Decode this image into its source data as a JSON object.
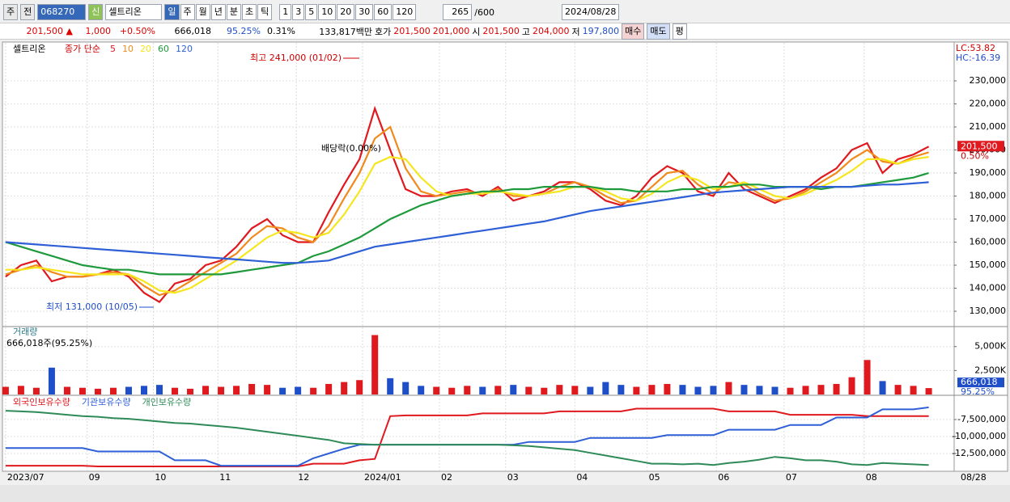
{
  "toolbar": {
    "unit": "주",
    "prev": "전",
    "code": "068270",
    "new_badge": "신",
    "name": "셀트리온",
    "periods": [
      "일",
      "주",
      "월",
      "년",
      "분",
      "초",
      "틱"
    ],
    "intervals": [
      "1",
      "3",
      "5",
      "10",
      "20",
      "30",
      "60",
      "120"
    ],
    "count": "265",
    "max_count": "/600",
    "date": "2024/08/28"
  },
  "quote": {
    "price": "201,500 ▲",
    "change": "1,000",
    "change_pct": "+0.50%",
    "volume": "666,018",
    "volume_ratio": "95.25%",
    "turnover": "0.31%",
    "amount": "133,817백만",
    "bid_label": "호가",
    "ask": "201,500",
    "bid": "201,000",
    "open_label": "시",
    "open": "201,500",
    "high_label": "고",
    "high": "204,000",
    "low_label": "저",
    "low": "197,800",
    "buy": "매수",
    "sell": "매도",
    "avg": "평"
  },
  "chart_data": [
    {
      "type": "line",
      "title": "셀트리온",
      "legend_prefix": "종가 단순",
      "grid": true,
      "x": [
        0,
        1,
        2,
        3,
        4,
        5,
        6,
        7,
        8,
        9,
        10,
        11,
        12,
        13,
        14,
        15,
        16,
        17,
        18,
        19,
        20,
        21,
        22,
        23,
        24,
        25,
        26,
        27,
        28,
        29,
        30,
        31,
        32,
        33,
        34,
        35,
        36,
        37,
        38,
        39,
        40,
        41,
        42,
        43,
        44,
        45,
        46,
        47,
        48,
        49,
        50,
        51,
        52,
        53,
        54,
        55,
        56,
        57,
        58,
        59,
        60
      ],
      "xlim": [
        -0.1,
        61.6
      ],
      "ylim": [
        123700,
        245800
      ],
      "yticks": [
        {
          "value": 130000,
          "label": "130,000"
        },
        {
          "value": 140000,
          "label": "140,000"
        },
        {
          "value": 150000,
          "label": "150,000"
        },
        {
          "value": 160000,
          "label": "160,000"
        },
        {
          "value": 170000,
          "label": "170,000"
        },
        {
          "value": 180000,
          "label": "180,000"
        },
        {
          "value": 190000,
          "label": "190,000"
        },
        {
          "value": 200000,
          "label": "200,000"
        },
        {
          "value": 210000,
          "label": "210,000"
        },
        {
          "value": 220000,
          "label": "220,000"
        },
        {
          "value": 230000,
          "label": "230,000"
        }
      ],
      "series": [
        {
          "name": "5",
          "color": "#e0191f",
          "values": [
            145000,
            150000,
            152000,
            143000,
            145000,
            145000,
            146000,
            148000,
            145000,
            138000,
            134000,
            142000,
            144000,
            150000,
            152000,
            158000,
            166000,
            170000,
            163000,
            160000,
            160000,
            173000,
            185000,
            196000,
            218000,
            200000,
            183000,
            180000,
            180000,
            182000,
            183000,
            180000,
            184000,
            178000,
            180000,
            182000,
            186000,
            186000,
            183000,
            178000,
            176000,
            180000,
            188000,
            193000,
            190000,
            182000,
            180000,
            190000,
            183000,
            180000,
            177000,
            180000,
            183000,
            188000,
            192000,
            200000,
            203000,
            190000,
            196000,
            198000,
            201500
          ]
        },
        {
          "name": "10",
          "color": "#f08a1c",
          "values": [
            146000,
            148000,
            150000,
            147000,
            145000,
            145000,
            146000,
            147000,
            146000,
            141000,
            137000,
            139000,
            143000,
            147000,
            151000,
            155000,
            162000,
            167000,
            166000,
            162000,
            160000,
            167000,
            179000,
            190000,
            205000,
            210000,
            192000,
            182000,
            180000,
            181000,
            182000,
            181000,
            183000,
            180000,
            180000,
            181000,
            184000,
            186000,
            184000,
            180000,
            177000,
            178000,
            184000,
            190000,
            191000,
            185000,
            181000,
            186000,
            185000,
            181000,
            178000,
            179000,
            182000,
            186000,
            190000,
            196000,
            200000,
            195000,
            194000,
            197000,
            199000
          ]
        },
        {
          "name": "20",
          "color": "#f5e61e",
          "values": [
            148000,
            148000,
            149000,
            148000,
            147000,
            146000,
            146000,
            146000,
            146000,
            143000,
            139000,
            138000,
            140000,
            144000,
            148000,
            152000,
            157000,
            162000,
            165000,
            164000,
            162000,
            164000,
            172000,
            182000,
            194000,
            197000,
            196000,
            188000,
            182000,
            180000,
            181000,
            181000,
            182000,
            181000,
            180000,
            181000,
            182000,
            184000,
            184000,
            182000,
            179000,
            178000,
            181000,
            186000,
            189000,
            187000,
            183000,
            184000,
            186000,
            183000,
            180000,
            179000,
            181000,
            184000,
            187000,
            191000,
            196000,
            196000,
            194000,
            196000,
            197000
          ]
        },
        {
          "name": "60",
          "color": "#1e9a3c",
          "values": [
            160000,
            158000,
            156000,
            154000,
            152000,
            150000,
            149000,
            148000,
            148000,
            147000,
            146000,
            146000,
            146000,
            146000,
            146000,
            147000,
            148000,
            149000,
            150000,
            151000,
            154000,
            156000,
            159000,
            162000,
            166000,
            170000,
            173000,
            176000,
            178000,
            180000,
            181000,
            182000,
            182000,
            183000,
            183000,
            184000,
            184000,
            184000,
            184000,
            183000,
            183000,
            182000,
            182000,
            182000,
            183000,
            183000,
            184000,
            184000,
            185000,
            185000,
            184000,
            184000,
            184000,
            183000,
            184000,
            184000,
            185000,
            186000,
            187000,
            188000,
            190000
          ]
        },
        {
          "name": "120",
          "color": "#2e5fd6",
          "values": [
            160000,
            159500,
            159000,
            158500,
            158000,
            157500,
            157000,
            156500,
            156000,
            155500,
            155000,
            154500,
            154000,
            153500,
            153000,
            152500,
            152000,
            151500,
            151000,
            151000,
            151500,
            152000,
            154000,
            156000,
            158000,
            159000,
            160000,
            161000,
            162000,
            163000,
            164000,
            165000,
            166000,
            167000,
            168000,
            169000,
            170500,
            172000,
            173500,
            174500,
            175500,
            176500,
            177500,
            178500,
            179500,
            180500,
            181500,
            182000,
            182500,
            183000,
            183500,
            184000,
            184000,
            184000,
            184000,
            184000,
            184500,
            185000,
            185000,
            185500,
            186000
          ]
        }
      ],
      "annotations": {
        "high": "최고 241,000 (01/02)",
        "low": "최저 131,000 (10/05)",
        "dividend": "배당락(0.00%)"
      },
      "last_price_label": "201,500",
      "last_change_label": "0.50%",
      "lc_label": "LC:53.82",
      "hc_label": "HC:-16.39"
    },
    {
      "type": "bar",
      "title": "거래량",
      "subtitle": "666,018주(95.25%)",
      "up_color": "#e0191f",
      "down_color": "#1f4ec9",
      "x": [
        0,
        1,
        2,
        3,
        4,
        5,
        6,
        7,
        8,
        9,
        10,
        11,
        12,
        13,
        14,
        15,
        16,
        17,
        18,
        19,
        20,
        21,
        22,
        23,
        24,
        25,
        26,
        27,
        28,
        29,
        30,
        31,
        32,
        33,
        34,
        35,
        36,
        37,
        38,
        39,
        40,
        41,
        42,
        43,
        44,
        45,
        46,
        47,
        48,
        49,
        50,
        51,
        52,
        53,
        54,
        55,
        56,
        57,
        58,
        59,
        60
      ],
      "xlim": [
        -0.1,
        61.6
      ],
      "ylim": [
        0,
        7000
      ],
      "yticks": [
        {
          "value": 2500,
          "label": "2,500K"
        },
        {
          "value": 5000,
          "label": "5,000K"
        }
      ],
      "values": [
        800,
        900,
        700,
        2800,
        800,
        700,
        600,
        700,
        800,
        900,
        1000,
        700,
        600,
        900,
        800,
        900,
        1100,
        1000,
        700,
        800,
        700,
        1100,
        1300,
        1500,
        6200,
        1700,
        1300,
        900,
        800,
        700,
        900,
        800,
        900,
        1000,
        800,
        700,
        1000,
        900,
        800,
        1300,
        1000,
        800,
        1000,
        1100,
        1000,
        800,
        900,
        1300,
        1000,
        900,
        800,
        700,
        900,
        1000,
        1100,
        1800,
        3600,
        1400,
        1000,
        900,
        666.018
      ],
      "current_label": "666,018",
      "current_pct": "95.25%"
    },
    {
      "type": "line",
      "x": [
        0,
        1,
        2,
        3,
        4,
        5,
        6,
        7,
        8,
        9,
        10,
        11,
        12,
        13,
        14,
        15,
        16,
        17,
        18,
        19,
        20,
        21,
        22,
        23,
        24,
        25,
        26,
        27,
        28,
        29,
        30,
        31,
        32,
        33,
        34,
        35,
        36,
        37,
        38,
        39,
        40,
        41,
        42,
        43,
        44,
        45,
        46,
        47,
        48,
        49,
        50,
        51,
        52,
        53,
        54,
        55,
        56,
        57,
        58,
        59,
        60
      ],
      "xlim": [
        -0.1,
        61.6
      ],
      "ylim": [
        -15000000,
        -4170000
      ],
      "yticks": [
        {
          "value": -12500000,
          "label": "-12,500,000"
        },
        {
          "value": -10000000,
          "label": "-10,000,000"
        },
        {
          "value": -7500000,
          "label": "-7,500,000"
        }
      ],
      "xticks": [
        {
          "value": 0,
          "label": "2023/07"
        },
        {
          "value": 5.3,
          "label": "09"
        },
        {
          "value": 9.6,
          "label": "10"
        },
        {
          "value": 13.8,
          "label": "11"
        },
        {
          "value": 18.9,
          "label": "12"
        },
        {
          "value": 23.2,
          "label": "2024/01"
        },
        {
          "value": 28.2,
          "label": "02"
        },
        {
          "value": 32.5,
          "label": "03"
        },
        {
          "value": 37,
          "label": "04"
        },
        {
          "value": 41.7,
          "label": "05"
        },
        {
          "value": 46.2,
          "label": "06"
        },
        {
          "value": 50.6,
          "label": "07"
        },
        {
          "value": 55.8,
          "label": "08"
        }
      ],
      "x_end_label": "08/28",
      "series": [
        {
          "name": "외국인보유수량",
          "color": "#e0191f",
          "values": [
            -14300000,
            -14300000,
            -14300000,
            -14300000,
            -14300000,
            -14300000,
            -14400000,
            -14400000,
            -14400000,
            -14400000,
            -14400000,
            -14400000,
            -14400000,
            -14400000,
            -14400000,
            -14400000,
            -14400000,
            -14400000,
            -14400000,
            -14400000,
            -14000000,
            -14000000,
            -14000000,
            -13500000,
            -13300000,
            -7000000,
            -6900000,
            -6900000,
            -6900000,
            -6900000,
            -6900000,
            -6600000,
            -6600000,
            -6600000,
            -6600000,
            -6600000,
            -6300000,
            -6300000,
            -6300000,
            -6300000,
            -6300000,
            -5900000,
            -5900000,
            -5900000,
            -5900000,
            -5900000,
            -5900000,
            -6300000,
            -6300000,
            -6300000,
            -6300000,
            -6800000,
            -6800000,
            -6800000,
            -6800000,
            -6800000,
            -7000000,
            -7000000,
            -7000000,
            -7000000,
            -7000000
          ]
        },
        {
          "name": "기관보유수량",
          "color": "#2e5fd6",
          "values": [
            -11700000,
            -11700000,
            -11700000,
            -11700000,
            -11700000,
            -11700000,
            -12200000,
            -12200000,
            -12200000,
            -12200000,
            -12200000,
            -13500000,
            -13500000,
            -13500000,
            -14300000,
            -14300000,
            -14300000,
            -14300000,
            -14300000,
            -14300000,
            -13200000,
            -12500000,
            -11800000,
            -11200000,
            -11200000,
            -11200000,
            -11200000,
            -11200000,
            -11200000,
            -11200000,
            -11200000,
            -11200000,
            -11200000,
            -11200000,
            -10800000,
            -10800000,
            -10800000,
            -10800000,
            -10200000,
            -10200000,
            -10200000,
            -10200000,
            -10200000,
            -9800000,
            -9800000,
            -9800000,
            -9800000,
            -9000000,
            -9000000,
            -9000000,
            -9000000,
            -8300000,
            -8300000,
            -8300000,
            -7200000,
            -7200000,
            -7200000,
            -6000000,
            -6000000,
            -6000000,
            -5700000
          ]
        },
        {
          "name": "개인보유수량",
          "color": "#2e8b57",
          "values": [
            -6200000,
            -6300000,
            -6400000,
            -6600000,
            -6800000,
            -7000000,
            -7100000,
            -7300000,
            -7400000,
            -7600000,
            -7800000,
            -8000000,
            -8100000,
            -8300000,
            -8500000,
            -8700000,
            -9000000,
            -9300000,
            -9600000,
            -9900000,
            -10200000,
            -10500000,
            -11000000,
            -11100000,
            -11200000,
            -11200000,
            -11200000,
            -11200000,
            -11200000,
            -11200000,
            -11200000,
            -11200000,
            -11200000,
            -11300000,
            -11400000,
            -11600000,
            -11800000,
            -12000000,
            -12400000,
            -12800000,
            -13200000,
            -13600000,
            -14000000,
            -14000000,
            -14100000,
            -14000000,
            -14200000,
            -13900000,
            -13700000,
            -13400000,
            -13000000,
            -13200000,
            -13500000,
            -13500000,
            -13700000,
            -14100000,
            -14200000,
            -13900000,
            -14000000,
            -14100000,
            -14200000
          ]
        }
      ]
    }
  ]
}
